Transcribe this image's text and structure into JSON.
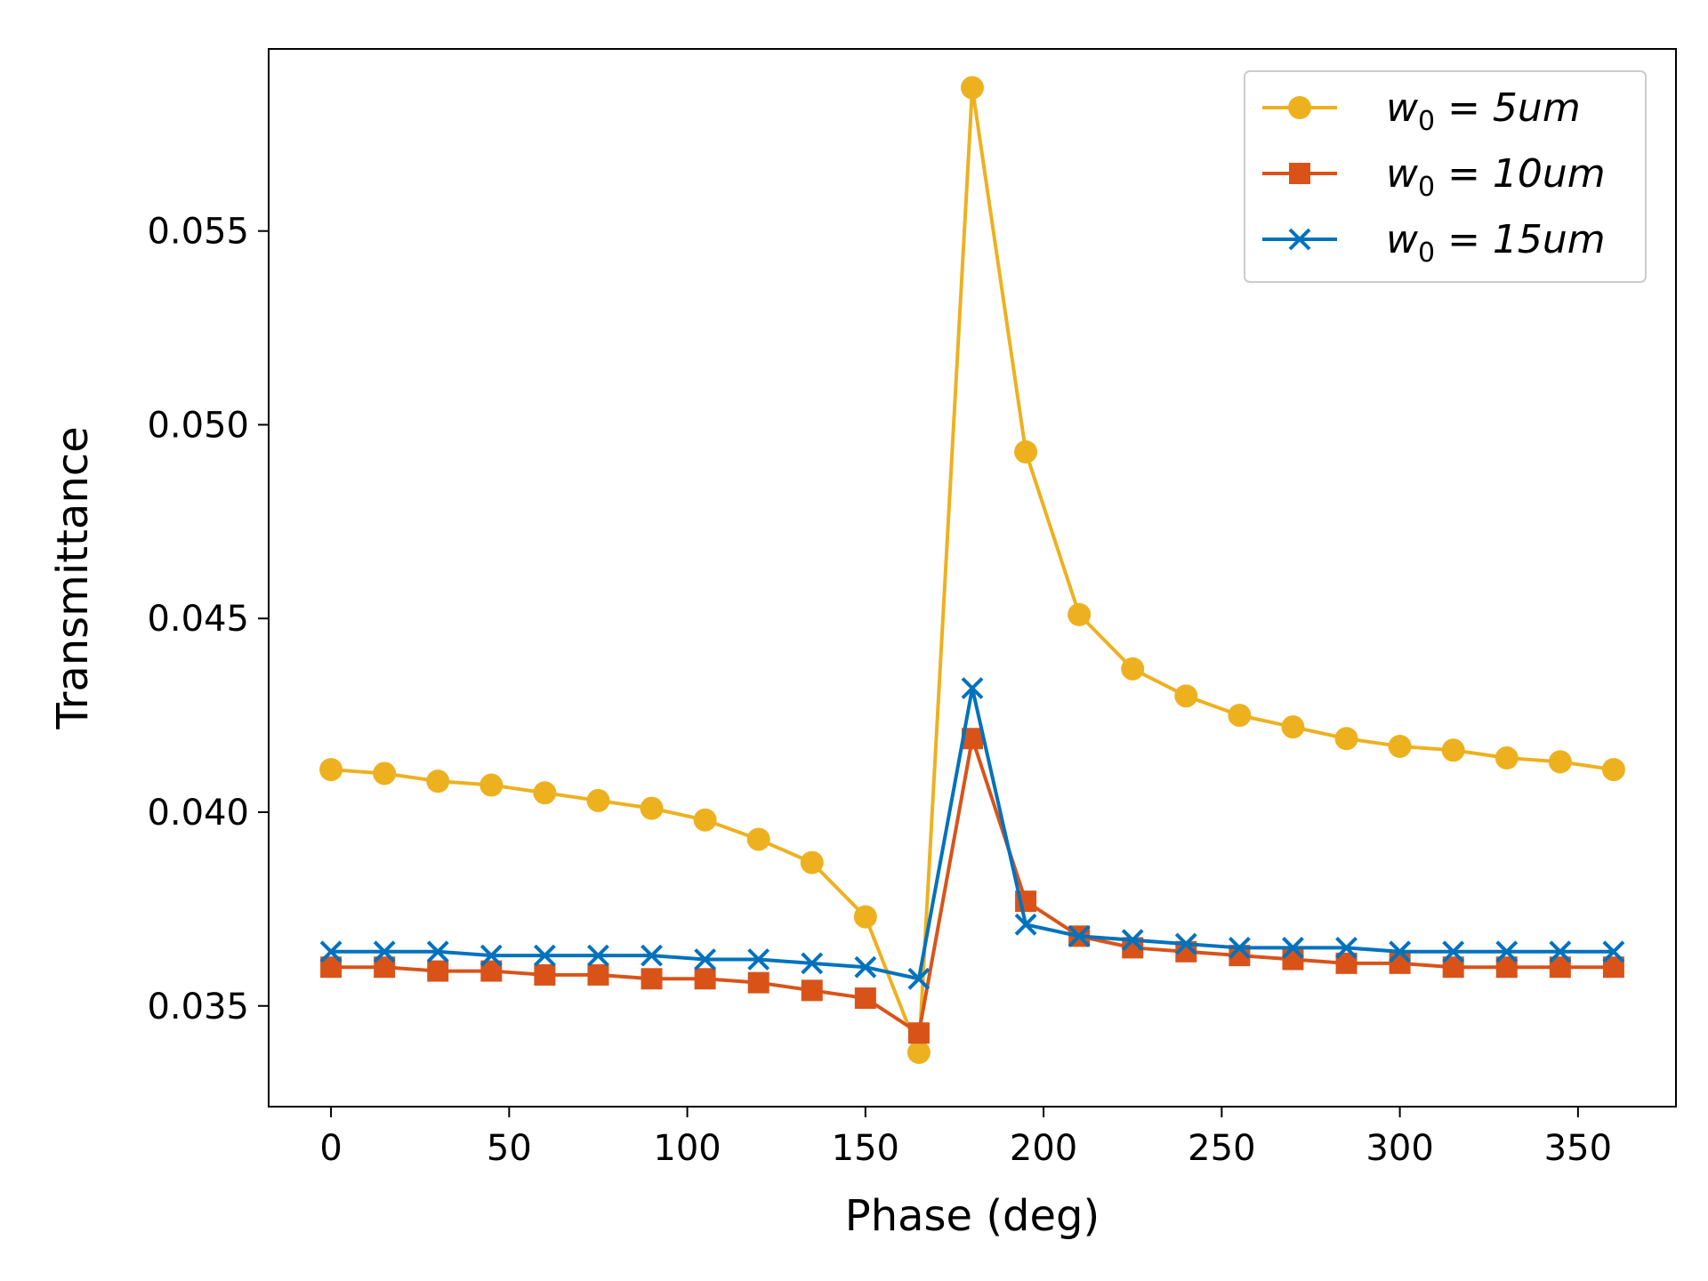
{
  "chart_data": {
    "type": "line",
    "title": "",
    "xlabel": "Phase (deg)",
    "ylabel": "Transmittance",
    "xlim": [
      -17.5,
      377.5
    ],
    "ylim": [
      0.0324,
      0.0597
    ],
    "xticks": [
      0,
      50,
      100,
      150,
      200,
      250,
      300,
      350
    ],
    "xtick_labels": [
      "0",
      "50",
      "100",
      "150",
      "200",
      "250",
      "300",
      "350"
    ],
    "yticks": [
      0.035,
      0.04,
      0.045,
      0.05,
      0.055
    ],
    "ytick_labels": [
      "0.035",
      "0.040",
      "0.045",
      "0.050",
      "0.055"
    ],
    "grid": false,
    "legend_position": "top-right",
    "x": [
      0,
      15,
      30,
      45,
      60,
      75,
      90,
      105,
      120,
      135,
      150,
      165,
      180,
      195,
      210,
      225,
      240,
      255,
      270,
      285,
      300,
      315,
      330,
      345,
      360
    ],
    "series": [
      {
        "name": "w0 = 5um",
        "label_base": "w",
        "label_sub": "0",
        "label_rest": " = 5um",
        "color": "#EDB120",
        "marker": "circle",
        "values": [
          0.0411,
          0.041,
          0.0408,
          0.0407,
          0.0405,
          0.0403,
          0.0401,
          0.0398,
          0.0393,
          0.0387,
          0.0373,
          0.0338,
          0.0587,
          0.0493,
          0.0451,
          0.0437,
          0.043,
          0.0425,
          0.0422,
          0.0419,
          0.0417,
          0.0416,
          0.0414,
          0.0413,
          0.0411
        ]
      },
      {
        "name": "w0 = 10um",
        "label_base": "w",
        "label_sub": "0",
        "label_rest": " = 10um",
        "color": "#D95319",
        "marker": "square",
        "values": [
          0.036,
          0.036,
          0.0359,
          0.0359,
          0.0358,
          0.0358,
          0.0357,
          0.0357,
          0.0356,
          0.0354,
          0.0352,
          0.0343,
          0.0419,
          0.0377,
          0.0368,
          0.0365,
          0.0364,
          0.0363,
          0.0362,
          0.0361,
          0.0361,
          0.036,
          0.036,
          0.036,
          0.036
        ]
      },
      {
        "name": "w0 = 15um",
        "label_base": "w",
        "label_sub": "0",
        "label_rest": " = 15um",
        "color": "#0072BD",
        "marker": "x",
        "values": [
          0.0364,
          0.0364,
          0.0364,
          0.0363,
          0.0363,
          0.0363,
          0.0363,
          0.0362,
          0.0362,
          0.0361,
          0.036,
          0.0357,
          0.0432,
          0.0371,
          0.0368,
          0.0367,
          0.0366,
          0.0365,
          0.0365,
          0.0365,
          0.0364,
          0.0364,
          0.0364,
          0.0364,
          0.0364
        ]
      }
    ]
  }
}
